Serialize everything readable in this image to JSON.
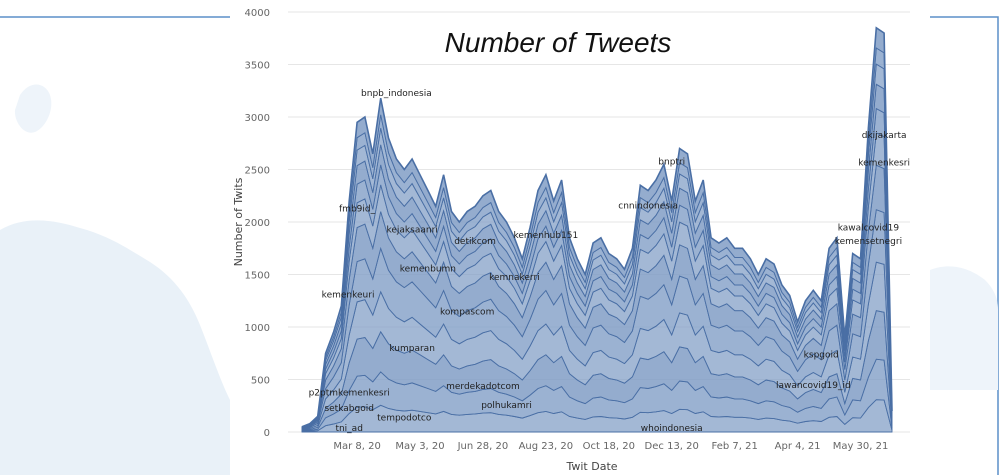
{
  "colors": {
    "page_background": "#ffffff",
    "map_land": "#e9f1f8",
    "frame_line": "#5b8fc8",
    "area_fill": "#7f9cc5",
    "area_stroke": "#4a6fa5"
  },
  "chart_data": {
    "type": "area",
    "stacked": true,
    "title": "Number of Tweets",
    "xlabel": "Twit Date",
    "ylabel": "Number of Twits",
    "ylim": [
      0,
      4000
    ],
    "yticks": [
      0,
      500,
      1000,
      1500,
      2000,
      2500,
      3000,
      3500,
      4000
    ],
    "xtick_labels": [
      "Mar 8, 20",
      "May 3, 20",
      "Jun 28, 20",
      "Aug 23, 20",
      "Oct 18, 20",
      "Dec 13, 20",
      "Feb 7, 21",
      "Apr 4, 21",
      "May 30, 21"
    ],
    "x": [
      "2020-01-19",
      "2020-01-26",
      "2020-02-02",
      "2020-02-09",
      "2020-02-16",
      "2020-02-23",
      "2020-03-01",
      "2020-03-08",
      "2020-03-15",
      "2020-03-22",
      "2020-03-29",
      "2020-04-05",
      "2020-04-12",
      "2020-04-19",
      "2020-04-26",
      "2020-05-03",
      "2020-05-10",
      "2020-05-17",
      "2020-05-24",
      "2020-05-31",
      "2020-06-07",
      "2020-06-14",
      "2020-06-21",
      "2020-06-28",
      "2020-07-05",
      "2020-07-12",
      "2020-07-19",
      "2020-07-26",
      "2020-08-02",
      "2020-08-09",
      "2020-08-16",
      "2020-08-23",
      "2020-08-30",
      "2020-09-06",
      "2020-09-13",
      "2020-09-20",
      "2020-09-27",
      "2020-10-04",
      "2020-10-11",
      "2020-10-18",
      "2020-10-25",
      "2020-11-01",
      "2020-11-08",
      "2020-11-15",
      "2020-11-22",
      "2020-11-29",
      "2020-12-06",
      "2020-12-13",
      "2020-12-20",
      "2020-12-27",
      "2021-01-03",
      "2021-01-10",
      "2021-01-17",
      "2021-01-24",
      "2021-01-31",
      "2021-02-07",
      "2021-02-14",
      "2021-02-21",
      "2021-02-28",
      "2021-03-07",
      "2021-03-14",
      "2021-03-21",
      "2021-03-28",
      "2021-04-04",
      "2021-04-11",
      "2021-04-18",
      "2021-04-25",
      "2021-05-02",
      "2021-05-09",
      "2021-05-16",
      "2021-05-23",
      "2021-05-30",
      "2021-06-06",
      "2021-06-13",
      "2021-06-20",
      "2021-06-27"
    ],
    "total": [
      50,
      80,
      150,
      750,
      950,
      1200,
      2200,
      2950,
      3000,
      2650,
      3180,
      2800,
      2600,
      2500,
      2600,
      2450,
      2300,
      2150,
      2450,
      2100,
      2000,
      2100,
      2150,
      2250,
      2300,
      2100,
      2000,
      1850,
      1650,
      1950,
      2300,
      2450,
      2200,
      2400,
      1850,
      1650,
      1500,
      1800,
      1850,
      1700,
      1650,
      1550,
      1750,
      2350,
      2300,
      2400,
      2550,
      2200,
      2700,
      2650,
      2200,
      2400,
      1850,
      1800,
      1850,
      1750,
      1750,
      1650,
      1500,
      1650,
      1600,
      1400,
      1300,
      1050,
      1250,
      1350,
      1250,
      1750,
      1850,
      900,
      1700,
      1650,
      2900,
      3850,
      3800,
      200
    ],
    "layer_fractions": [
      0.08,
      0.18,
      0.3,
      0.42,
      0.55,
      0.66,
      0.74,
      0.8,
      0.86,
      0.91,
      0.95
    ],
    "annotations": [
      {
        "label": "bnpb_indonesia",
        "x": "2020-04-12",
        "y": 3200
      },
      {
        "label": "fmb9id_",
        "x": "2020-03-08",
        "y": 2100
      },
      {
        "label": "kejaksaanri",
        "x": "2020-04-26",
        "y": 1900
      },
      {
        "label": "detikcom",
        "x": "2020-06-21",
        "y": 1790
      },
      {
        "label": "kemenbumn",
        "x": "2020-05-10",
        "y": 1530
      },
      {
        "label": "kemenhub151",
        "x": "2020-08-23",
        "y": 1850
      },
      {
        "label": "kemnakerri",
        "x": "2020-07-26",
        "y": 1450
      },
      {
        "label": "cnnindonesia",
        "x": "2020-11-22",
        "y": 2130
      },
      {
        "label": "bnptri",
        "x": "2020-12-13",
        "y": 2550
      },
      {
        "label": "dkijakarta",
        "x": "2021-06-20",
        "y": 2800
      },
      {
        "label": "kemenkesri",
        "x": "2021-06-20",
        "y": 2540
      },
      {
        "label": "kawalcovid19",
        "x": "2021-06-06",
        "y": 1920
      },
      {
        "label": "kemensetnegri",
        "x": "2021-06-06",
        "y": 1790
      },
      {
        "label": "kemenkeuri",
        "x": "2020-02-29",
        "y": 1280
      },
      {
        "label": "kompascom",
        "x": "2020-06-14",
        "y": 1120
      },
      {
        "label": "kumparan",
        "x": "2020-04-26",
        "y": 770
      },
      {
        "label": "kspgoid",
        "x": "2021-04-25",
        "y": 710
      },
      {
        "label": "merdekadotcom",
        "x": "2020-06-28",
        "y": 410
      },
      {
        "label": "lawancovid19_id",
        "x": "2021-04-18",
        "y": 420
      },
      {
        "label": "p2ptmkemenkesri",
        "x": "2020-03-01",
        "y": 350
      },
      {
        "label": "polhukamri",
        "x": "2020-07-19",
        "y": 230
      },
      {
        "label": "setkabgoid",
        "x": "2020-03-01",
        "y": 200
      },
      {
        "label": "tempodotco",
        "x": "2020-04-19",
        "y": 110
      },
      {
        "label": "tni_ad",
        "x": "2020-03-01",
        "y": 10
      },
      {
        "label": "whoindonesia",
        "x": "2020-12-13",
        "y": 10
      }
    ]
  }
}
